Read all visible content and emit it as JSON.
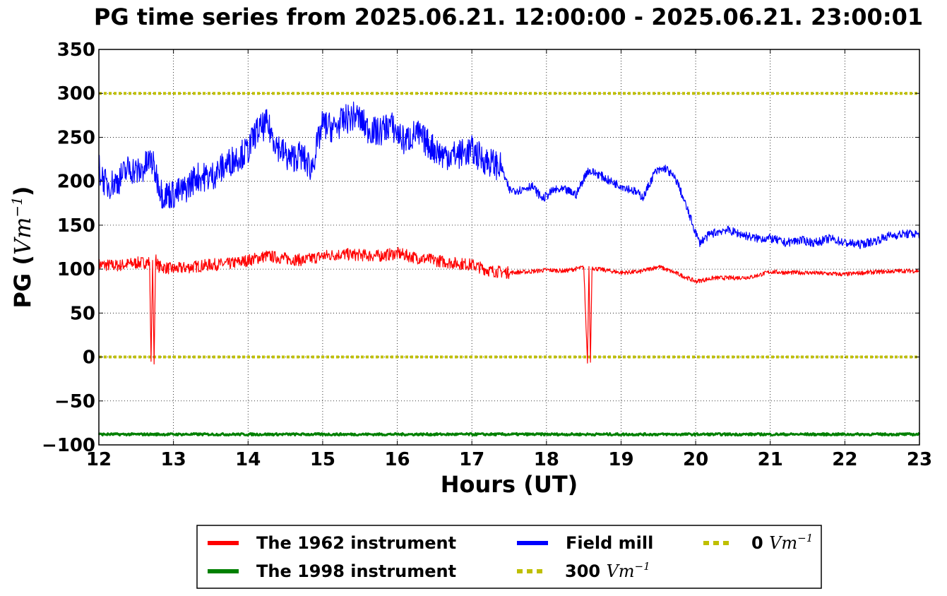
{
  "chart_data": {
    "type": "line",
    "title": "PG time series from 2025.06.21. 12:00:00 - 2025.06.21. 23:00:01",
    "xlabel": "Hours (UT)",
    "ylabel": "PG (",
    "ylabel_unit": "Vm",
    "ylabel_exp": "−1",
    "ylabel_close": ")",
    "xlim": [
      12,
      23
    ],
    "ylim": [
      -100,
      350
    ],
    "xticks": [
      12,
      13,
      14,
      15,
      16,
      17,
      18,
      19,
      20,
      21,
      22,
      23
    ],
    "xtick_labels": [
      "12",
      "13",
      "14",
      "15",
      "16",
      "17",
      "18",
      "19",
      "20",
      "21",
      "22",
      "23"
    ],
    "yticks": [
      -100,
      -50,
      0,
      50,
      100,
      150,
      200,
      250,
      300,
      350
    ],
    "ytick_labels": [
      "−100",
      "−50",
      "0",
      "50",
      "100",
      "150",
      "200",
      "250",
      "300",
      "350"
    ],
    "grid": true,
    "legend_placement": "below plot, centered",
    "series": [
      {
        "name": "The 1962 instrument",
        "color": "#ff0000",
        "x": [
          12.0,
          12.25,
          12.5,
          12.68,
          12.7,
          12.72,
          12.74,
          12.76,
          12.8,
          13.0,
          13.2,
          13.5,
          13.75,
          14.0,
          14.25,
          14.5,
          14.75,
          15.0,
          15.25,
          15.5,
          15.75,
          16.0,
          16.25,
          16.5,
          16.75,
          17.0,
          17.25,
          17.5,
          17.75,
          18.0,
          18.25,
          18.5,
          18.55,
          18.57,
          18.59,
          18.61,
          18.63,
          18.7,
          19.0,
          19.25,
          19.5,
          19.75,
          20.0,
          20.25,
          20.5,
          20.75,
          21.0,
          21.25,
          21.5,
          21.75,
          22.0,
          22.25,
          22.5,
          22.75,
          23.0
        ],
        "y": [
          105,
          104,
          107,
          108,
          -5,
          110,
          -8,
          112,
          103,
          100,
          102,
          105,
          106,
          110,
          115,
          112,
          110,
          115,
          117,
          116,
          115,
          118,
          113,
          110,
          107,
          105,
          98,
          96,
          97,
          99,
          98,
          102,
          -7,
          103,
          -6,
          102,
          101,
          100,
          96,
          97,
          103,
          95,
          86,
          90,
          90,
          91,
          97,
          96,
          96,
          95,
          94,
          96,
          97,
          98,
          98
        ]
      },
      {
        "name": "The 1998 instrument",
        "color": "#008000",
        "x": [
          12.0,
          23.0
        ],
        "y": [
          -88,
          -88
        ]
      },
      {
        "name": "Field mill",
        "color": "#0000ff",
        "x": [
          12.0,
          12.1,
          12.25,
          12.4,
          12.55,
          12.7,
          12.85,
          13.0,
          13.15,
          13.3,
          13.5,
          13.65,
          13.8,
          14.0,
          14.1,
          14.25,
          14.4,
          14.55,
          14.7,
          14.85,
          15.0,
          15.15,
          15.3,
          15.45,
          15.6,
          15.75,
          15.9,
          16.1,
          16.25,
          16.45,
          16.6,
          16.8,
          17.0,
          17.15,
          17.3,
          17.4,
          17.5,
          17.65,
          17.8,
          17.95,
          18.1,
          18.25,
          18.4,
          18.55,
          18.7,
          18.85,
          19.0,
          19.15,
          19.3,
          19.45,
          19.6,
          19.75,
          19.9,
          20.05,
          20.2,
          20.4,
          20.6,
          20.8,
          21.0,
          21.2,
          21.4,
          21.6,
          21.8,
          22.0,
          22.2,
          22.4,
          22.6,
          22.8,
          23.0
        ],
        "y": [
          215,
          195,
          200,
          215,
          210,
          225,
          185,
          185,
          190,
          205,
          205,
          215,
          225,
          235,
          255,
          265,
          240,
          225,
          230,
          215,
          265,
          260,
          270,
          275,
          260,
          255,
          265,
          245,
          255,
          240,
          230,
          230,
          235,
          225,
          220,
          215,
          190,
          190,
          195,
          180,
          190,
          190,
          185,
          212,
          208,
          200,
          195,
          190,
          182,
          210,
          215,
          200,
          165,
          130,
          140,
          145,
          140,
          135,
          135,
          130,
          133,
          130,
          135,
          130,
          128,
          132,
          138,
          140,
          140
        ]
      },
      {
        "name": "300 Vm−1",
        "color": "#bfbf00",
        "style": "dotted",
        "x": [
          12.0,
          23.0
        ],
        "y": [
          300,
          300
        ]
      },
      {
        "name": "0 Vm−1",
        "color": "#bfbf00",
        "style": "dotted",
        "x": [
          12.0,
          23.0
        ],
        "y": [
          0,
          0
        ]
      }
    ],
    "legend": [
      {
        "number": "",
        "label": "The 1962 instrument",
        "unit": "",
        "exp": "",
        "color": "#ff0000",
        "style": "solid"
      },
      {
        "number": "",
        "label": "The 1998 instrument",
        "unit": "",
        "exp": "",
        "color": "#008000",
        "style": "solid"
      },
      {
        "number": "",
        "label": "Field mill",
        "unit": "",
        "exp": "",
        "color": "#0000ff",
        "style": "solid"
      },
      {
        "number": "300",
        "label": "",
        "unit": "Vm",
        "exp": "−1",
        "color": "#bfbf00",
        "style": "dotted"
      },
      {
        "number": "0",
        "label": "",
        "unit": "Vm",
        "exp": "−1",
        "color": "#bfbf00",
        "style": "dotted"
      }
    ]
  }
}
